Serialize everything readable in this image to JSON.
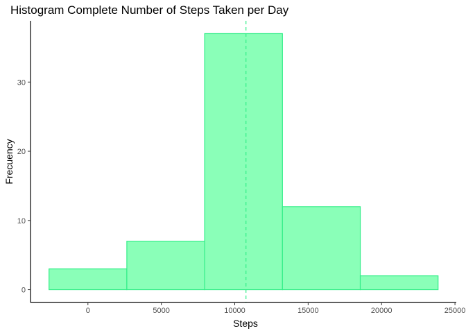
{
  "chart_data": {
    "type": "bar",
    "subtype": "histogram",
    "title": "Histogram Complete Number of Steps Taken per Day",
    "xlabel": "Steps",
    "ylabel": "Frecuency",
    "bins": [
      {
        "start": -2650,
        "end": 2650,
        "count": 3
      },
      {
        "start": 2650,
        "end": 7950,
        "count": 7
      },
      {
        "start": 7950,
        "end": 13250,
        "count": 37
      },
      {
        "start": 13250,
        "end": 18550,
        "count": 12
      },
      {
        "start": 18550,
        "end": 23850,
        "count": 2
      }
    ],
    "mean_line": 10766,
    "xlim": [
      -3910,
      25090
    ],
    "ylim": [
      -1.85,
      38.85
    ],
    "x_ticks": [
      0,
      5000,
      10000,
      15000,
      20000,
      25000
    ],
    "x_tick_labels": [
      "0",
      "5000",
      "10000",
      "15000",
      "20000",
      "25000"
    ],
    "y_ticks": [
      0,
      10,
      20,
      30
    ],
    "y_tick_labels": [
      "0",
      "10",
      "20",
      "30"
    ],
    "grid": false,
    "legend": "none",
    "colors": {
      "bar_fill": "#8affb8",
      "bar_stroke": "#33ee88",
      "mean_line": "#33ee88",
      "axis": "#000000",
      "tick_text": "#4d4d4d"
    }
  }
}
